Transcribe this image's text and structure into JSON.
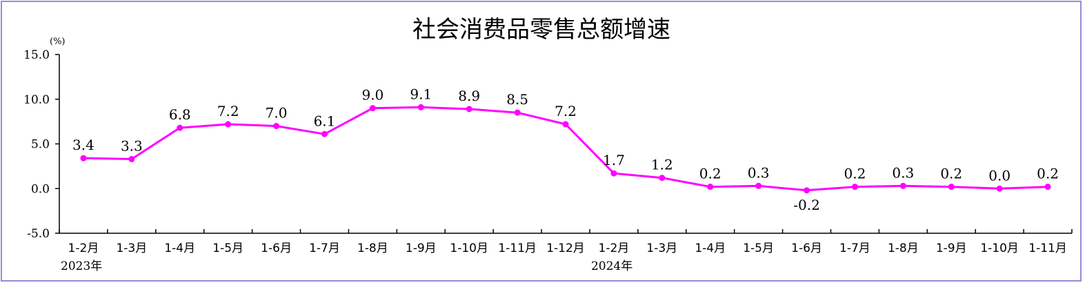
{
  "chart_data": {
    "type": "line",
    "title": "社会消费品零售总额增速",
    "unit_label": "(%)",
    "ylim": [
      -5.0,
      15.0
    ],
    "y_ticks": [
      "15.0",
      "10.0",
      "5.0",
      "0.0",
      "-5.0"
    ],
    "y_tick_values": [
      15,
      10,
      5,
      0,
      -5
    ],
    "categories": [
      "1-2月",
      "1-3月",
      "1-4月",
      "1-5月",
      "1-6月",
      "1-7月",
      "1-8月",
      "1-9月",
      "1-10月",
      "1-11月",
      "1-12月",
      "1-2月",
      "1-3月",
      "1-4月",
      "1-5月",
      "1-6月",
      "1-7月",
      "1-8月",
      "1-9月",
      "1-10月",
      "1-11月"
    ],
    "year_labels": [
      {
        "label": "2023年",
        "category_index": 0
      },
      {
        "label": "2024年",
        "category_index": 11
      }
    ],
    "series": [
      {
        "values": [
          3.4,
          3.3,
          6.8,
          7.2,
          7.0,
          6.1,
          9.0,
          9.1,
          8.9,
          8.5,
          7.2,
          1.7,
          1.2,
          0.2,
          0.3,
          -0.2,
          0.2,
          0.3,
          0.2,
          0.0,
          0.2
        ],
        "labels": [
          "3.4",
          "3.3",
          "6.8",
          "7.2",
          "7.0",
          "6.1",
          "9.0",
          "9.1",
          "8.9",
          "8.5",
          "7.2",
          "1.7",
          "1.2",
          "0.2",
          "0.3",
          "-0.2",
          "0.2",
          "0.3",
          "0.2",
          "0.0",
          "0.2"
        ],
        "color": "#ff00ff"
      }
    ],
    "grid": false,
    "legend": "none"
  }
}
